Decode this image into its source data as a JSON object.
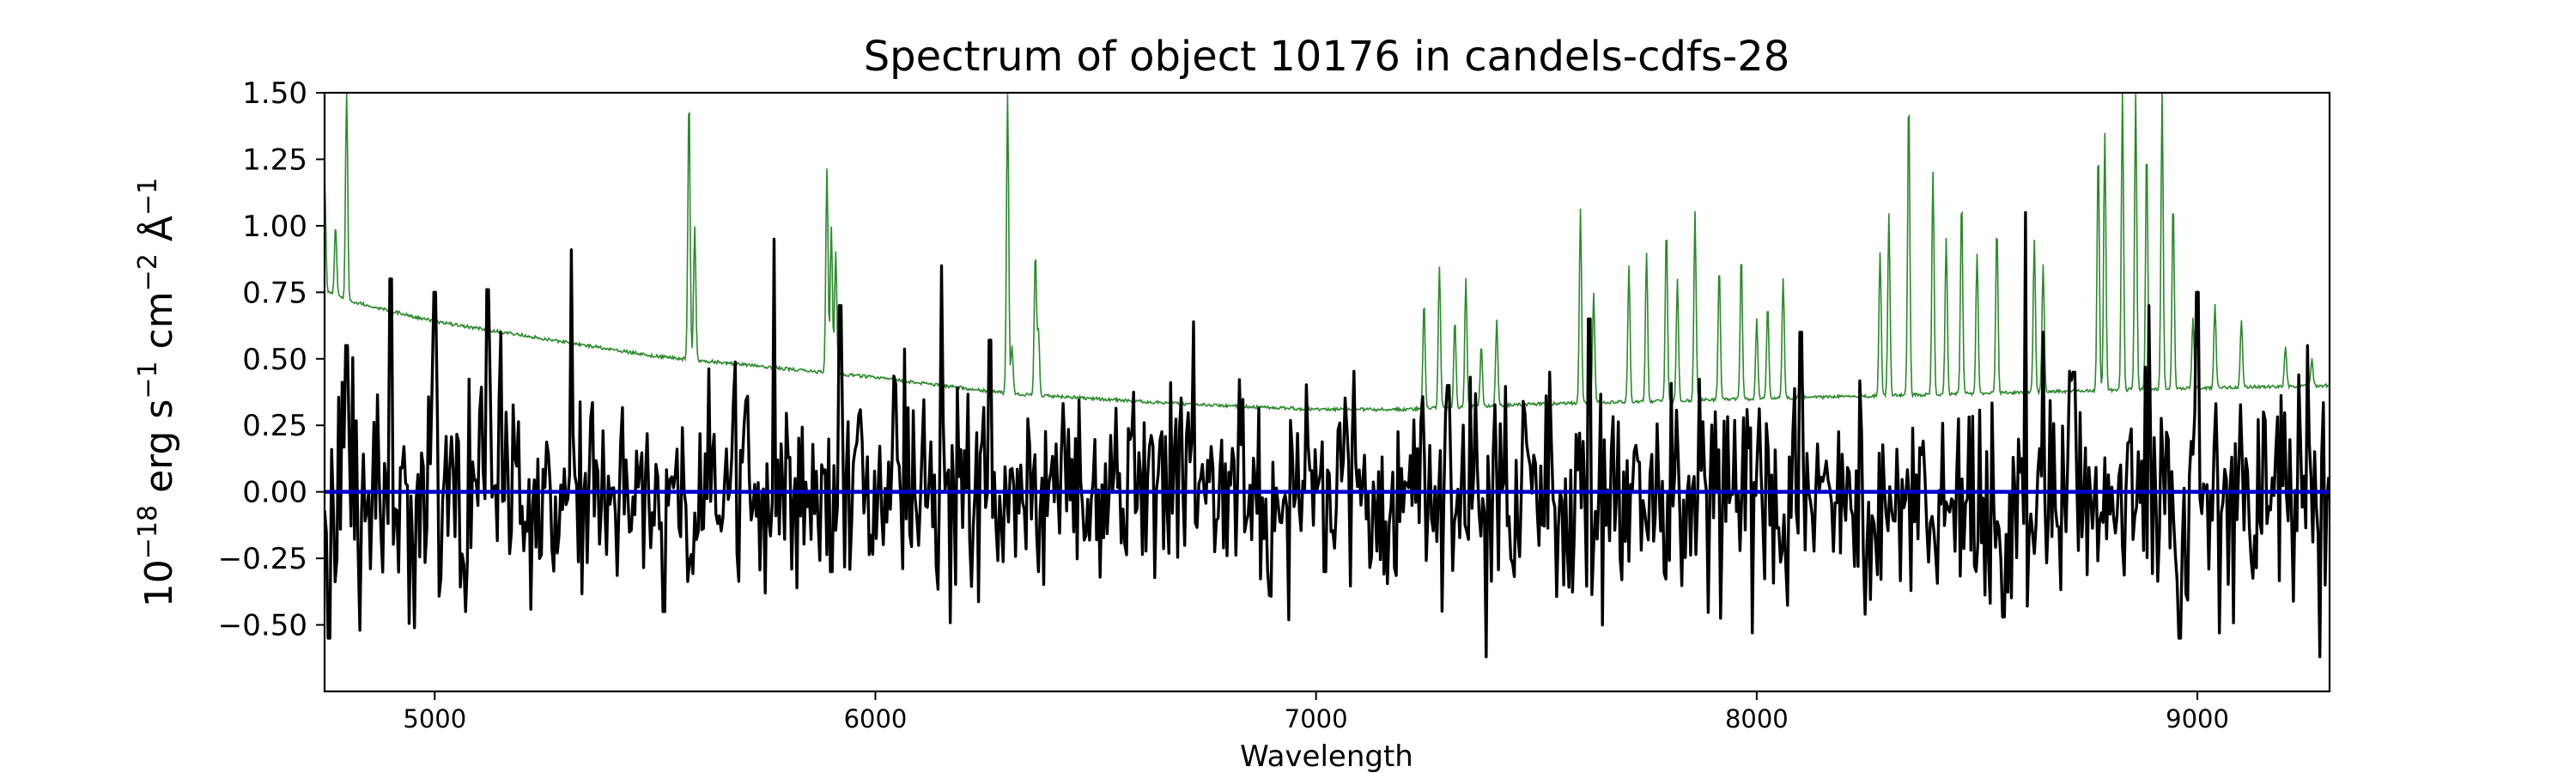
{
  "chart_data": {
    "type": "line",
    "title": "Spectrum of object 10176 in candels-cdfs-28",
    "xlabel": "Wavelength",
    "ylabel": {
      "base": "10",
      "exponent": "−18",
      "unit": "erg s",
      "s_exp": "−1",
      "cm": "cm",
      "cm_exp": "−2",
      "ang": "Å",
      "ang_exp": "−1"
    },
    "xlim": [
      4750,
      9300
    ],
    "ylim": [
      -0.75,
      1.5
    ],
    "xticks": [
      5000,
      6000,
      7000,
      8000,
      9000
    ],
    "xtick_labels": [
      "5000",
      "6000",
      "7000",
      "8000",
      "9000"
    ],
    "yticks": [
      -0.5,
      -0.25,
      0.0,
      0.25,
      0.5,
      0.75,
      1.0,
      1.25,
      1.5
    ],
    "ytick_labels": [
      "−0.50",
      "−0.25",
      "0.00",
      "0.25",
      "0.50",
      "0.75",
      "1.00",
      "1.25",
      "1.50"
    ],
    "grid": false,
    "series": [
      {
        "role": "noise",
        "color": "#2a8a2a",
        "baseline": [
          [
            4750,
            0.76
          ],
          [
            4800,
            0.72
          ],
          [
            5000,
            0.64
          ],
          [
            5500,
            0.51
          ],
          [
            6000,
            0.43
          ],
          [
            6300,
            0.37
          ],
          [
            6700,
            0.33
          ],
          [
            7000,
            0.31
          ],
          [
            7200,
            0.31
          ],
          [
            7500,
            0.33
          ],
          [
            8000,
            0.35
          ],
          [
            8500,
            0.37
          ],
          [
            9000,
            0.39
          ],
          [
            9300,
            0.4
          ]
        ],
        "peaks": [
          [
            4750,
            1.2
          ],
          [
            4775,
            1.0
          ],
          [
            4800,
            1.5
          ],
          [
            5577,
            1.5
          ],
          [
            5590,
            1.0
          ],
          [
            5890,
            1.22
          ],
          [
            5900,
            1.0
          ],
          [
            5910,
            0.9
          ],
          [
            6300,
            1.5
          ],
          [
            6310,
            0.55
          ],
          [
            6363,
            0.9
          ],
          [
            6370,
            0.6
          ],
          [
            7245,
            0.72
          ],
          [
            7280,
            0.85
          ],
          [
            7315,
            0.65
          ],
          [
            7340,
            0.8
          ],
          [
            7375,
            0.55
          ],
          [
            7410,
            0.65
          ],
          [
            7600,
            1.07
          ],
          [
            7630,
            0.75
          ],
          [
            7710,
            0.85
          ],
          [
            7750,
            0.9
          ],
          [
            7795,
            1.0
          ],
          [
            7820,
            0.8
          ],
          [
            7860,
            1.05
          ],
          [
            7915,
            0.85
          ],
          [
            7965,
            0.9
          ],
          [
            8000,
            0.65
          ],
          [
            8025,
            0.7
          ],
          [
            8060,
            0.8
          ],
          [
            8100,
            0.6
          ],
          [
            8280,
            0.9
          ],
          [
            8300,
            1.05
          ],
          [
            8345,
            1.5
          ],
          [
            8400,
            1.2
          ],
          [
            8430,
            0.95
          ],
          [
            8465,
            1.1
          ],
          [
            8500,
            0.9
          ],
          [
            8545,
            1.0
          ],
          [
            8630,
            0.95
          ],
          [
            8650,
            0.85
          ],
          [
            8775,
            1.3
          ],
          [
            8790,
            1.35
          ],
          [
            8830,
            1.5
          ],
          [
            8860,
            1.5
          ],
          [
            8885,
            1.3
          ],
          [
            8920,
            1.5
          ],
          [
            8945,
            1.1
          ],
          [
            8990,
            0.65
          ],
          [
            9040,
            0.7
          ],
          [
            9100,
            0.65
          ],
          [
            9200,
            0.55
          ],
          [
            9260,
            0.5
          ]
        ]
      },
      {
        "role": "zero-line",
        "color": "#0000cc",
        "value": 0.0
      },
      {
        "role": "flux",
        "color": "#000000",
        "seed": 10176,
        "sigma": 0.2,
        "step": 4,
        "extremes": [
          [
            4760,
            -0.55
          ],
          [
            4800,
            0.55
          ],
          [
            4830,
            -0.52
          ],
          [
            4900,
            0.8
          ],
          [
            5000,
            0.75
          ],
          [
            5070,
            -0.45
          ],
          [
            5120,
            0.76
          ],
          [
            5150,
            0.6
          ],
          [
            5310,
            0.91
          ],
          [
            5520,
            -0.45
          ],
          [
            5770,
            0.95
          ],
          [
            5750,
            -0.38
          ],
          [
            5920,
            0.7
          ],
          [
            5900,
            -0.3
          ],
          [
            6150,
            0.85
          ],
          [
            6260,
            0.57
          ],
          [
            7020,
            -0.3
          ],
          [
            7300,
            0.4
          ],
          [
            7385,
            -0.64
          ],
          [
            7530,
            0.45
          ],
          [
            7620,
            0.65
          ],
          [
            7650,
            -0.5
          ],
          [
            7990,
            -0.53
          ],
          [
            8100,
            0.6
          ],
          [
            8230,
            -0.28
          ],
          [
            8560,
            -0.47
          ],
          [
            8610,
            1.05
          ],
          [
            8650,
            0.6
          ],
          [
            8720,
            0.45
          ],
          [
            8890,
            0.7
          ],
          [
            8960,
            -0.55
          ],
          [
            9000,
            0.75
          ],
          [
            9050,
            -0.53
          ],
          [
            9150,
            0.3
          ],
          [
            9250,
            0.55
          ],
          [
            9290,
            -0.35
          ]
        ]
      }
    ]
  }
}
